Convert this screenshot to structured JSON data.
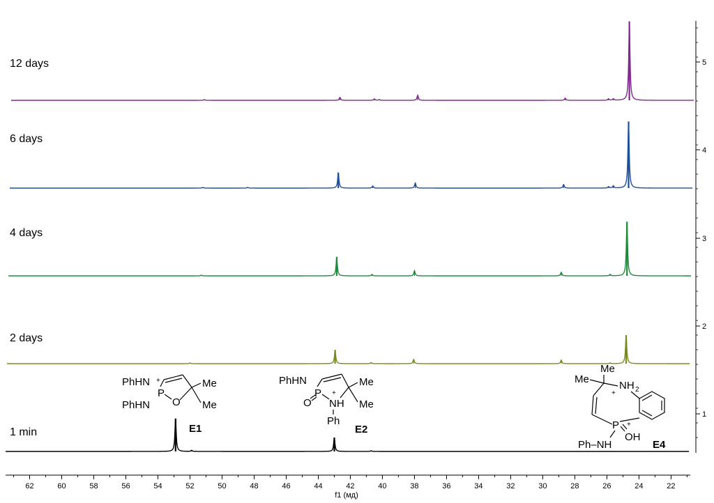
{
  "chart_data": {
    "type": "line",
    "xlabel": "f1 (мд)",
    "x_range": [
      63.5,
      20.8
    ],
    "x_reversed": true,
    "x_ticks": [
      62,
      60,
      58,
      56,
      54,
      52,
      50,
      48,
      46,
      44,
      42,
      40,
      38,
      36,
      34,
      32,
      30,
      28,
      26,
      24,
      22
    ],
    "y_ticks": [
      1,
      2,
      3,
      4,
      5
    ],
    "series": [
      {
        "name": "1 min",
        "color": "#000000",
        "offset": 1,
        "peaks": [
          {
            "x": 52.9,
            "h": 0.45
          },
          {
            "x": 51.9,
            "h": 0.015
          },
          {
            "x": 43.0,
            "h": 0.19
          },
          {
            "x": 40.7,
            "h": 0.01
          }
        ]
      },
      {
        "name": "2 days",
        "color": "#7a8a1e",
        "offset": 2,
        "peaks": [
          {
            "x": 52.0,
            "h": 0.01
          },
          {
            "x": 42.95,
            "h": 0.19
          },
          {
            "x": 40.7,
            "h": 0.015
          },
          {
            "x": 38.05,
            "h": 0.06
          },
          {
            "x": 28.85,
            "h": 0.05
          },
          {
            "x": 25.8,
            "h": 0.01
          },
          {
            "x": 24.8,
            "h": 0.39
          }
        ]
      },
      {
        "name": "4 days",
        "color": "#1e8a3c",
        "offset": 3,
        "peaks": [
          {
            "x": 51.3,
            "h": 0.01
          },
          {
            "x": 42.85,
            "h": 0.26
          },
          {
            "x": 40.65,
            "h": 0.02
          },
          {
            "x": 38.0,
            "h": 0.07
          },
          {
            "x": 28.85,
            "h": 0.05
          },
          {
            "x": 25.8,
            "h": 0.02
          },
          {
            "x": 24.75,
            "h": 0.74
          }
        ]
      },
      {
        "name": "6 days",
        "color": "#1f4e9a",
        "offset": 4,
        "peaks": [
          {
            "x": 51.2,
            "h": 0.01
          },
          {
            "x": 48.4,
            "h": 0.01
          },
          {
            "x": 42.75,
            "h": 0.21
          },
          {
            "x": 40.6,
            "h": 0.03
          },
          {
            "x": 37.95,
            "h": 0.07
          },
          {
            "x": 28.7,
            "h": 0.05
          },
          {
            "x": 25.9,
            "h": 0.02
          },
          {
            "x": 25.6,
            "h": 0.03
          },
          {
            "x": 24.65,
            "h": 0.91
          }
        ]
      },
      {
        "name": "12 days",
        "color": "#7d2a8c",
        "offset": 5,
        "peaks": [
          {
            "x": 51.1,
            "h": 0.01
          },
          {
            "x": 42.65,
            "h": 0.04
          },
          {
            "x": 40.5,
            "h": 0.02
          },
          {
            "x": 40.2,
            "h": 0.01
          },
          {
            "x": 37.8,
            "h": 0.07
          },
          {
            "x": 28.6,
            "h": 0.03
          },
          {
            "x": 25.9,
            "h": 0.02
          },
          {
            "x": 25.6,
            "h": 0.02
          },
          {
            "x": 24.6,
            "h": 1.08
          }
        ]
      }
    ]
  },
  "structures": {
    "e1": {
      "label": "E1",
      "phhn_top": "PhHN",
      "phhn_bottom": "PhHN",
      "plus": "+",
      "p": "P",
      "o": "O",
      "me_top": "Me",
      "me_bottom": "Me"
    },
    "e2": {
      "label": "E2",
      "phhn": "PhHN",
      "plus": "+",
      "p": "P",
      "o": "O",
      "nh": "NH",
      "ph": "Ph",
      "me_top": "Me",
      "me_bottom": "Me"
    },
    "e4": {
      "label": "E4",
      "me_top": "Me",
      "me_left": "Me",
      "nh2": "NH",
      "nh2_sub": "2",
      "plus_n": "+",
      "plus_p": "+",
      "p": "P",
      "oh": "OH",
      "phnh": "Ph–NH"
    }
  }
}
